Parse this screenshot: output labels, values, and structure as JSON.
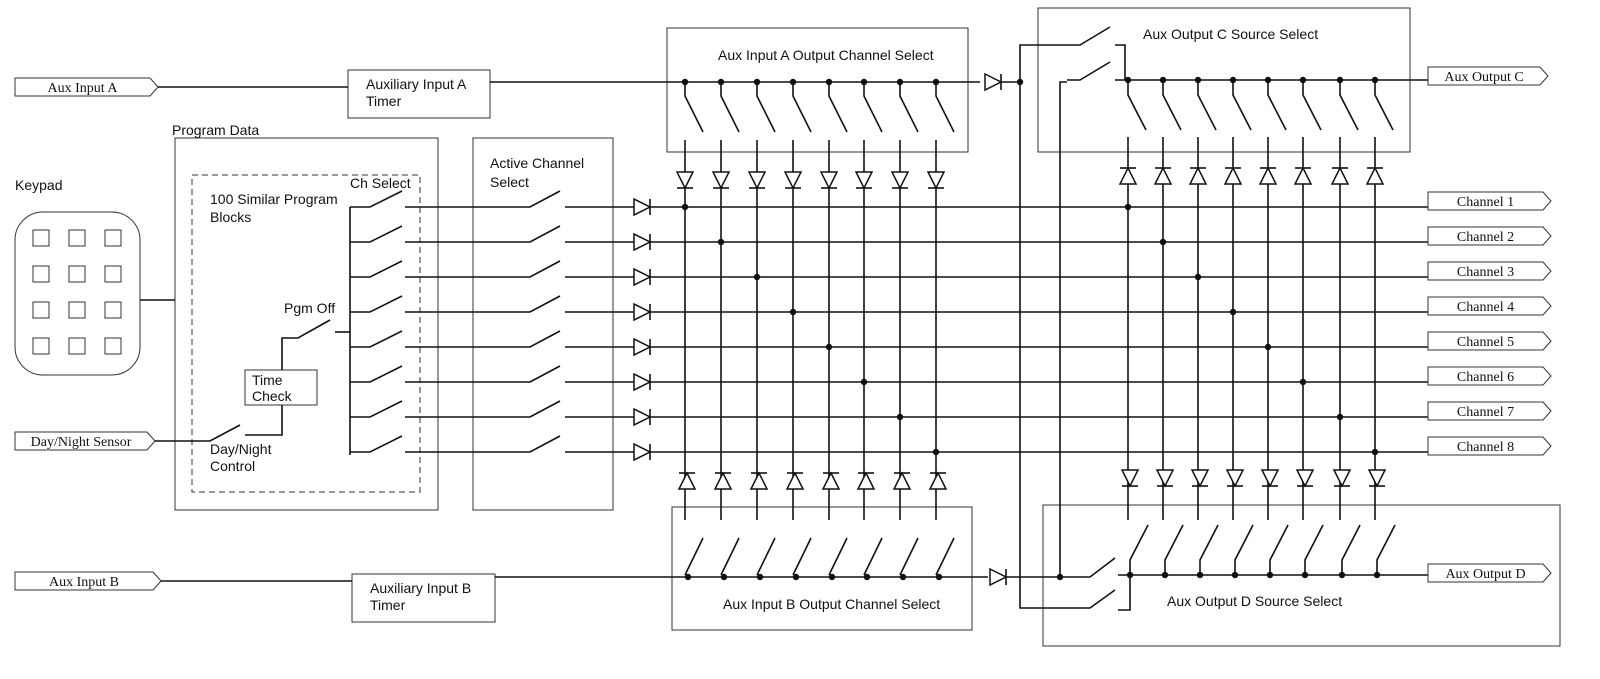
{
  "inputs": {
    "aux_input_a": "Aux Input A",
    "aux_input_b": "Aux Input B",
    "day_night_sensor": "Day/Night Sensor"
  },
  "outputs": {
    "aux_output_c": "Aux Output C",
    "aux_output_d": "Aux Output D",
    "channels": [
      "Channel 1",
      "Channel 2",
      "Channel 3",
      "Channel 4",
      "Channel 5",
      "Channel 6",
      "Channel 7",
      "Channel 8"
    ]
  },
  "blocks": {
    "timer_a_line1": "Auxiliary Input A",
    "timer_a_line2": "Timer",
    "timer_b_line1": "Auxiliary Input B",
    "timer_b_line2": "Timer",
    "program_data": "Program Data",
    "program_blocks_line1": "100 Similar Program",
    "program_blocks_line2": "Blocks",
    "ch_select": "Ch Select",
    "pgm_off": "Pgm Off",
    "time_check_line1": "Time",
    "time_check_line2": "Check",
    "day_night_control_line1": "Day/Night",
    "day_night_control_line2": "Control",
    "keypad": "Keypad",
    "active_channel_line1": "Active Channel",
    "active_channel_line2": "Select",
    "aux_a_channel_select": "Aux Input A Output Channel Select",
    "aux_b_channel_select": "Aux Input B Output Channel Select",
    "aux_c_source_select": "Aux Output C Source Select",
    "aux_d_source_select": "Aux Output D Source Select"
  }
}
